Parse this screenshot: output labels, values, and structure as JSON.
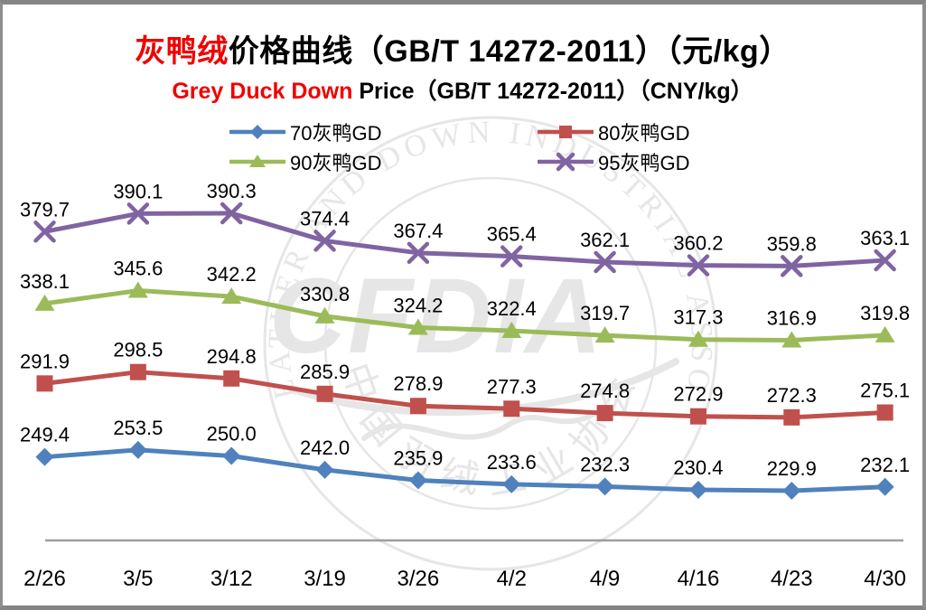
{
  "title": {
    "highlight": "灰鸭绒",
    "rest": "价格曲线（GB/T 14272-2011）（元/kg）",
    "highlight_color": "#f00000"
  },
  "subtitle": {
    "highlight": "Grey Duck Down",
    "rest": " Price（GB/T 14272-2011）（CNY/kg）",
    "highlight_color": "#f00000"
  },
  "watermark": {
    "ring_text_en": "CHINA FEATHER AND DOWN INDUSTRIAL ASSOCIATION",
    "ring_text_cn": "中国羽绒工业协会",
    "abbr": "CFDIA",
    "color": "#e6e6e6"
  },
  "chart_data": {
    "type": "line",
    "title": "灰鸭绒价格曲线（GB/T 14272-2011）（元/kg）",
    "subtitle": "Grey Duck Down Price（GB/T 14272-2011）（CNY/kg）",
    "xlabel": "",
    "ylabel": "",
    "grid": false,
    "legend_position": "top",
    "value_labels": true,
    "ylim_implied": [
      225,
      395
    ],
    "categories": [
      "2/26",
      "3/5",
      "3/12",
      "3/19",
      "3/26",
      "4/2",
      "4/9",
      "4/16",
      "4/23",
      "4/30"
    ],
    "series": [
      {
        "name": "70灰鸭GD",
        "color": "#4f81bd",
        "marker": "diamond",
        "values": [
          249.4,
          253.5,
          250.0,
          242.0,
          235.9,
          233.6,
          232.3,
          230.4,
          229.9,
          232.1
        ]
      },
      {
        "name": "80灰鸭GD",
        "color": "#c0504d",
        "marker": "square",
        "values": [
          291.9,
          298.5,
          294.8,
          285.9,
          278.9,
          277.3,
          274.8,
          272.9,
          272.3,
          275.1
        ]
      },
      {
        "name": "90灰鸭GD",
        "color": "#9bbb59",
        "marker": "triangle",
        "values": [
          338.1,
          345.6,
          342.2,
          330.8,
          324.2,
          322.4,
          319.7,
          317.3,
          316.9,
          319.8
        ]
      },
      {
        "name": "95灰鸭GD",
        "color": "#8064a2",
        "marker": "x",
        "values": [
          379.7,
          390.1,
          390.3,
          374.4,
          367.4,
          365.4,
          362.1,
          360.2,
          359.8,
          363.1
        ]
      }
    ],
    "axis": {
      "line_color": "#9e9e9e",
      "label_color": "#000000"
    }
  }
}
